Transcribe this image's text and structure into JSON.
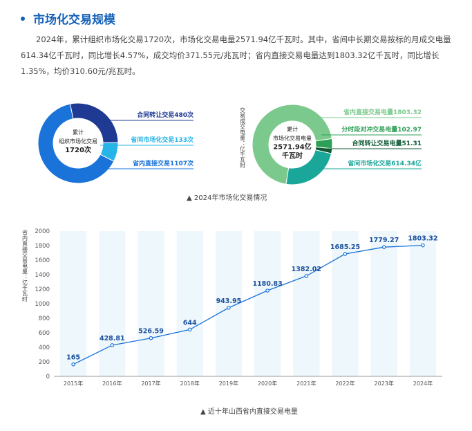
{
  "section": {
    "title": "市场化交易规模",
    "intro": "2024年，累计组织市场化交易1720次，市场化交易电量2571.94亿千瓦时。其中，省间中长期交易按标的月成交电量614.34亿千瓦时，同比增长4.57%，成交均价371.55元/兆瓦时；省内直接交易电量达到1803.32亿千瓦时，同比增长1.35%，均价310.60元/兆瓦时。"
  },
  "chart_data": [
    {
      "type": "pie",
      "center_label": [
        "累计",
        "组织市场化交易",
        "1720次"
      ],
      "unit": "次",
      "slices": [
        {
          "name": "合同转让交易",
          "value": 480,
          "label": "合同转让交易480次",
          "color": "#1f3a93"
        },
        {
          "name": "省间市场化交易",
          "value": 133,
          "label": "省间市场化交易133次",
          "color": "#27b5e8"
        },
        {
          "name": "省内直接交易",
          "value": 1107,
          "label": "省内直接交易1107次",
          "color": "#1a73d9"
        }
      ]
    },
    {
      "type": "pie",
      "center_label": [
        "累计",
        "市场化交易电量",
        "2571.94亿",
        "千瓦时"
      ],
      "side_label": "交易成交电量：亿千瓦时",
      "slices": [
        {
          "name": "省内直接交易电量",
          "value": 1803.32,
          "label": "省内直接交易电量1803.32",
          "color": "#7cc98e"
        },
        {
          "name": "分时段对冲交易电量",
          "value": 102.97,
          "label": "分时段对冲交易电量102.97",
          "color": "#2e9f57"
        },
        {
          "name": "合同转让交易电量",
          "value": 51.31,
          "label": "合同转让交易电量51.31",
          "color": "#0f5a33"
        },
        {
          "name": "省间市场化交易",
          "value": 614.34,
          "label": "省间市场化交易614.34亿",
          "color": "#1aa79a"
        }
      ]
    },
    {
      "type": "line",
      "ylabel": "省内直接交易电量：亿千瓦时",
      "ylim": [
        0,
        2000
      ],
      "yticks": [
        0,
        200,
        400,
        600,
        800,
        1000,
        1200,
        1400,
        1600,
        1800,
        2000
      ],
      "categories": [
        "2015年",
        "2016年",
        "2017年",
        "2018年",
        "2019年",
        "2020年",
        "2021年",
        "2022年",
        "2023年",
        "2024年"
      ],
      "values": [
        165,
        428.81,
        526.59,
        644,
        943.95,
        1180.83,
        1382.02,
        1685.25,
        1779.27,
        1803.32
      ],
      "color": "#1a73d9"
    }
  ],
  "captions": {
    "donuts": "▲ 2024年市场化交易情况",
    "line": "▲ 近十年山西省内直接交易电量"
  }
}
